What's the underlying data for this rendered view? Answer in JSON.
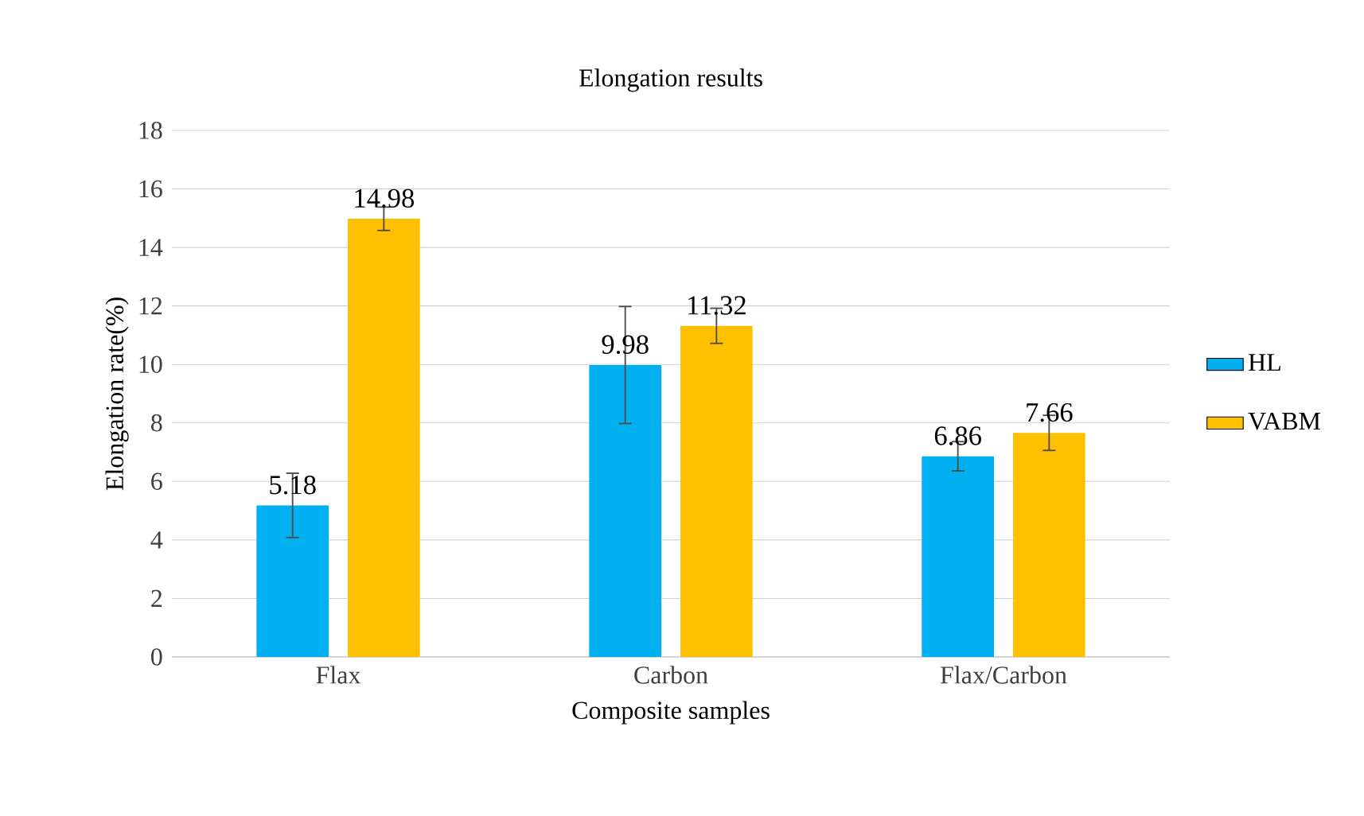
{
  "chart_data": {
    "type": "bar",
    "title": "Elongation  results",
    "xlabel": "Composite samples",
    "ylabel": "Elongation rate(%)",
    "categories": [
      "Flax",
      "Carbon",
      "Flax/Carbon"
    ],
    "series": [
      {
        "name": "HL",
        "color": "#00b0f0",
        "values": [
          5.18,
          9.98,
          6.86
        ],
        "errors": [
          1.1,
          2.0,
          0.5
        ]
      },
      {
        "name": "VABM",
        "color": "#ffc000",
        "values": [
          14.98,
          11.32,
          7.66
        ],
        "errors": [
          0.4,
          0.6,
          0.6
        ]
      }
    ],
    "ylim": [
      0,
      18
    ],
    "yticks": [
      0,
      2,
      4,
      6,
      8,
      10,
      12,
      14,
      16,
      18
    ],
    "grid": "y",
    "legend": "right",
    "data_labels": true
  }
}
